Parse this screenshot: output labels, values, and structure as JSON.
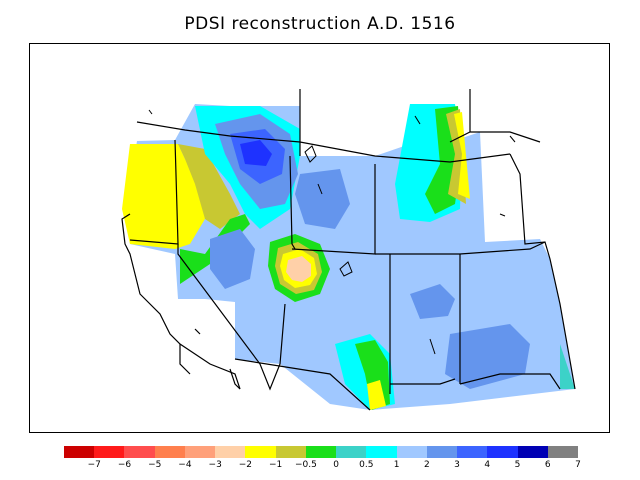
{
  "title": "PDSI reconstruction A.D. 1516",
  "palette": {
    "c_m7": "#cc0000",
    "c_m6": "#ff1a1a",
    "c_m5": "#ff4d4d",
    "c_m4": "#ff7f4d",
    "c_m3": "#ffa07a",
    "c_m2": "#ffd0a8",
    "c_m1": "#ffff00",
    "c_m05": "#c8c832",
    "c_0": "#1adf1a",
    "c_05": "#3cd2c8",
    "c_1": "#00ffff",
    "c_2": "#a0c8ff",
    "c_3": "#6495ed",
    "c_4": "#3c64ff",
    "c_5": "#1e32ff",
    "c_6": "#0000b4",
    "c_7": "#000078",
    "c_over": "#808080",
    "bg": "#ffffff",
    "boundary": "#000000"
  },
  "colorbar": {
    "colors": [
      "#cc0000",
      "#ff1a1a",
      "#ff4d4d",
      "#ff7f4d",
      "#ffa07a",
      "#ffd0a8",
      "#ffff00",
      "#c8c832",
      "#1adf1a",
      "#3cd2c8",
      "#00ffff",
      "#a0c8ff",
      "#6495ed",
      "#3c64ff",
      "#1e32ff",
      "#0000b4",
      "#808080"
    ],
    "tick_labels": [
      "−7",
      "−6",
      "−5",
      "−4",
      "−3",
      "−2",
      "−1",
      "−0.5",
      "0",
      "0.5",
      "1",
      "2",
      "3",
      "4",
      "5",
      "6",
      "7"
    ]
  }
}
